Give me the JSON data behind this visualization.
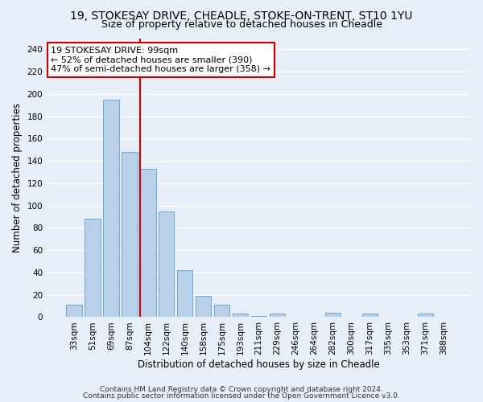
{
  "title": "19, STOKESAY DRIVE, CHEADLE, STOKE-ON-TRENT, ST10 1YU",
  "subtitle": "Size of property relative to detached houses in Cheadle",
  "xlabel": "Distribution of detached houses by size in Cheadle",
  "ylabel": "Number of detached properties",
  "bar_labels": [
    "33sqm",
    "51sqm",
    "69sqm",
    "87sqm",
    "104sqm",
    "122sqm",
    "140sqm",
    "158sqm",
    "175sqm",
    "193sqm",
    "211sqm",
    "229sqm",
    "246sqm",
    "264sqm",
    "282sqm",
    "300sqm",
    "317sqm",
    "335sqm",
    "353sqm",
    "371sqm",
    "388sqm"
  ],
  "bar_values": [
    11,
    88,
    195,
    148,
    133,
    95,
    42,
    19,
    11,
    3,
    1,
    3,
    0,
    0,
    4,
    0,
    3,
    0,
    0,
    3,
    0
  ],
  "bar_color": "#b8d0e8",
  "bar_edge_color": "#6aaad4",
  "vline_x": 4,
  "vline_color": "#cc0000",
  "annotation_line1": "19 STOKESAY DRIVE: 99sqm",
  "annotation_line2": "← 52% of detached houses are smaller (390)",
  "annotation_line3": "47% of semi-detached houses are larger (358) →",
  "annotation_box_edgecolor": "#cc0000",
  "ylim": [
    0,
    250
  ],
  "yticks": [
    0,
    20,
    40,
    60,
    80,
    100,
    120,
    140,
    160,
    180,
    200,
    220,
    240
  ],
  "footer1": "Contains HM Land Registry data © Crown copyright and database right 2024.",
  "footer2": "Contains public sector information licensed under the Open Government Licence v3.0.",
  "background_color": "#e8eef8",
  "grid_color": "#ffffff",
  "title_fontsize": 10,
  "subtitle_fontsize": 9,
  "axis_label_fontsize": 8.5,
  "tick_fontsize": 7.5,
  "annotation_fontsize": 8,
  "footer_fontsize": 6.5
}
